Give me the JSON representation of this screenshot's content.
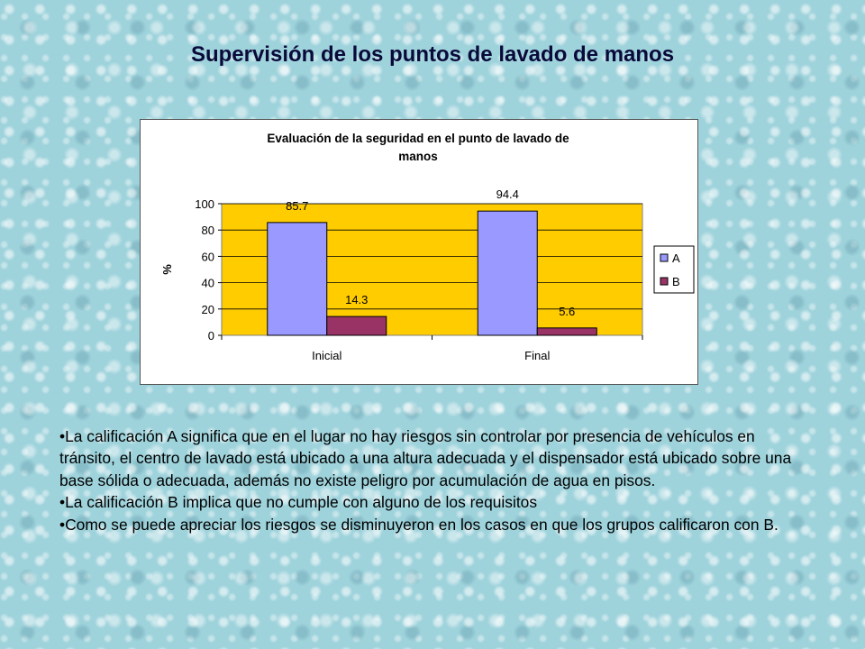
{
  "slide": {
    "title": "Supervisión de los puntos de lavado de manos"
  },
  "chart_data": {
    "type": "bar",
    "title": "Evaluación de la seguridad en el punto de lavado de manos",
    "title_lines": [
      "Evaluación de la seguridad en el punto de lavado de",
      "manos"
    ],
    "xlabel": "",
    "ylabel": "%",
    "categories": [
      "Inicial",
      "Final"
    ],
    "series": [
      {
        "name": "A",
        "values": [
          85.7,
          94.4
        ],
        "color": "#9999ff"
      },
      {
        "name": "B",
        "values": [
          14.3,
          5.6
        ],
        "color": "#993366"
      }
    ],
    "ylim": [
      0,
      100
    ],
    "yticks": [
      0,
      20,
      40,
      60,
      80,
      100
    ],
    "grid": true,
    "legend": "right",
    "plot_background": "#ffcc00"
  },
  "bullets": [
    "•La calificación A significa que en el lugar  no hay riesgos sin controlar por presencia de vehículos en tránsito, el centro de lavado está ubicado a una altura adecuada y el dispensador está ubicado sobre una base sólida o adecuada, además no existe peligro por acumulación de agua en pisos.",
    "•La calificación B implica que no cumple con alguno de los requisitos",
    "•Como se puede apreciar los riesgos se disminuyeron en los casos en que los grupos calificaron con B."
  ]
}
